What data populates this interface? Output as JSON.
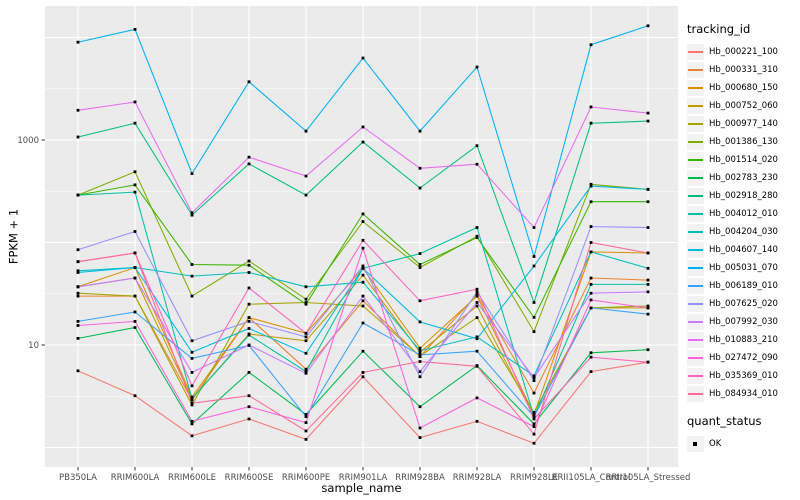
{
  "chart_data": {
    "type": "line",
    "title": "",
    "xlabel": "sample_name",
    "ylabel": "FPKM + 1",
    "y_scale": "log10",
    "grid": true,
    "legend_position": "right",
    "panel_bg": "#EBEBEB",
    "grid_color": "#FFFFFF",
    "tick_text_color": "#4D4D4D",
    "marker_color": "#000000",
    "y_ticks": [
      {
        "label": "1000",
        "value": 1000
      },
      {
        "label": "10",
        "value": 10
      }
    ],
    "ylim": [
      0.7,
      20000
    ],
    "categories": [
      "PB350LA",
      "RRIM600LA",
      "RRIM600LE",
      "RRIM600SE",
      "RRIM600PE",
      "RRIM901LA",
      "RRIM928BA",
      "RRIM928LA",
      "RRIM928LE",
      "RRII105LA_Control",
      "RRII105LA_Stressed"
    ],
    "legend": {
      "color_title": "tracking_id",
      "shape_title": "quant_status",
      "shape_items": [
        {
          "label": "OK"
        }
      ]
    },
    "series": [
      {
        "name": "Hb_000221_100",
        "color": "#F8766D",
        "values": [
          5.6,
          3.2,
          1.3,
          1.9,
          1.2,
          4.9,
          1.25,
          1.8,
          1.1,
          5.5,
          6.8
        ]
      },
      {
        "name": "Hb_000331_310",
        "color": "#EA8331",
        "values": [
          30,
          30,
          2.9,
          18.5,
          5.8,
          27,
          7.7,
          31,
          3.4,
          45,
          43
        ]
      },
      {
        "name": "Hb_000680_150",
        "color": "#D89000",
        "values": [
          37,
          57,
          3.1,
          18.5,
          13,
          56,
          9.3,
          30,
          2.1,
          81,
          79
        ]
      },
      {
        "name": "Hb_000752_060",
        "color": "#C09B00",
        "values": [
          37,
          45,
          3.0,
          12.8,
          11,
          48,
          8.5,
          24,
          2.0,
          23,
          23
        ]
      },
      {
        "name": "Hb_000977_140",
        "color": "#A3A500",
        "values": [
          32,
          30,
          2.6,
          25,
          26,
          24,
          7.8,
          18.5,
          2.2,
          23,
          24
        ]
      },
      {
        "name": "Hb_001386_130",
        "color": "#7CAE00",
        "values": [
          290,
          490,
          30,
          66,
          28,
          160,
          57,
          115,
          13.5,
          370,
          330
        ]
      },
      {
        "name": "Hb_001514_020",
        "color": "#39B600",
        "values": [
          290,
          365,
          61,
          60,
          25,
          190,
          61,
          112,
          18.6,
          250,
          250
        ]
      },
      {
        "name": "Hb_002783_230",
        "color": "#00BB4E",
        "values": [
          11.6,
          14.8,
          1.7,
          5.4,
          2.1,
          8.7,
          2.5,
          6.3,
          1.7,
          8.4,
          9.0
        ]
      },
      {
        "name": "Hb_002918_280",
        "color": "#00BF7D",
        "values": [
          1070,
          1460,
          185,
          585,
          290,
          955,
          340,
          880,
          26,
          1460,
          1530
        ]
      },
      {
        "name": "Hb_004012_010",
        "color": "#00C1A3",
        "values": [
          290,
          310,
          3.0,
          12.5,
          5.5,
          56,
          78,
          140,
          2.0,
          39,
          39
        ]
      },
      {
        "name": "Hb_004204_030",
        "color": "#00BFC4",
        "values": [
          53,
          57,
          47,
          51,
          37,
          41,
          8.8,
          12,
          5.0,
          81,
          56
        ]
      },
      {
        "name": "Hb_004607_140",
        "color": "#00BAE0",
        "values": [
          51,
          57,
          8.5,
          14.5,
          8.3,
          56,
          16.8,
          11.5,
          59,
          355,
          330
        ]
      },
      {
        "name": "Hb_005031_070",
        "color": "#00B0F6",
        "values": [
          9000,
          12000,
          470,
          3700,
          1220,
          6300,
          1220,
          5150,
          73,
          8500,
          13000
        ]
      },
      {
        "name": "Hb_006189_010",
        "color": "#35A2FF",
        "values": [
          17,
          21,
          7.4,
          9.9,
          2.0,
          16.4,
          8.0,
          8.7,
          2.0,
          23,
          20
        ]
      },
      {
        "name": "Hb_007625_020",
        "color": "#9590FF",
        "values": [
          85,
          128,
          11,
          17,
          12,
          59,
          4.9,
          33,
          4.5,
          143,
          140
        ]
      },
      {
        "name": "Hb_007992_030",
        "color": "#C77CFF",
        "values": [
          37,
          45,
          5.4,
          10,
          5.3,
          30,
          5.5,
          26,
          4.8,
          32,
          33
        ]
      },
      {
        "name": "Hb_010883_210",
        "color": "#E76BF3",
        "values": [
          1950,
          2350,
          195,
          680,
          445,
          1340,
          530,
          580,
          140,
          2100,
          1830
        ]
      },
      {
        "name": "Hb_027472_090",
        "color": "#FA62DB",
        "values": [
          15.5,
          17,
          1.8,
          2.5,
          1.75,
          88,
          1.55,
          3.05,
          1.6,
          27.5,
          23
        ]
      },
      {
        "name": "Hb_035369_010",
        "color": "#FF62BC",
        "values": [
          65,
          79,
          4.0,
          36,
          13,
          105,
          27,
          35,
          1.9,
          7.6,
          6.8
        ]
      },
      {
        "name": "Hb_084934_010",
        "color": "#FF6A98",
        "values": [
          65,
          79,
          2.7,
          3.2,
          1.45,
          5.4,
          6.9,
          6.2,
          1.35,
          100,
          79
        ]
      }
    ]
  }
}
